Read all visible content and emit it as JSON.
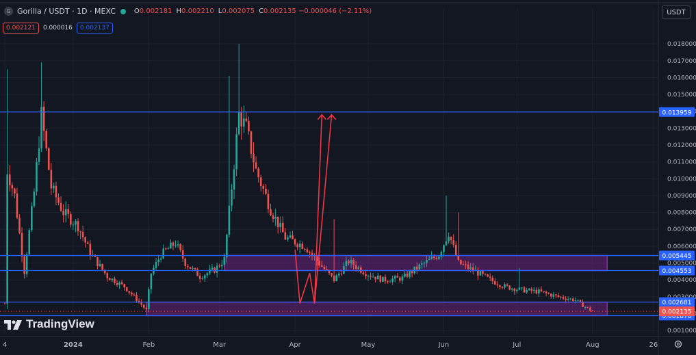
{
  "header": {
    "symbol_icon": "G",
    "title": "Gorilla / USDT · 1D · MEXC",
    "status_dot_color": "#26a69a",
    "ohlc": [
      {
        "label": "O",
        "value": "0.002181"
      },
      {
        "label": "H",
        "value": "0.002210"
      },
      {
        "label": "L",
        "value": "0.002075"
      },
      {
        "label": "C",
        "value": "0.002135 −0.000046 (−2.11%)"
      }
    ],
    "sell_price": "0.002121",
    "spread": "0.000016",
    "buy_price": "0.002137",
    "currency": "USDT"
  },
  "branding": {
    "logo_text": "TradingView",
    "icon": "tradingview-logo-icon"
  },
  "toolbar": {
    "settings_icon": "gear-icon"
  },
  "colors": {
    "background": "#131722",
    "up": "#26a69a",
    "down": "#ef5350",
    "level_line": "#2962ff",
    "zone": "#9c27b0",
    "annotation": "#f23645",
    "grid": "#1e222d",
    "axis_text": "#b2b5be"
  },
  "chart_data": {
    "type": "candlestick",
    "title": "Gorilla / USDT · 1D · MEXC",
    "ylim": [
      0.0008,
      0.0189
    ],
    "xlim": [
      "2023-12-02",
      "2024-08-28"
    ],
    "y_ticks": [
      "0.001000",
      "0.002000",
      "0.003000",
      "0.004000",
      "0.005000",
      "0.006000",
      "0.007000",
      "0.008000",
      "0.009000",
      "0.010000",
      "0.011000",
      "0.012000",
      "0.013000",
      "0.014000",
      "0.015000",
      "0.016000",
      "0.017000",
      "0.018000"
    ],
    "x_ticks": [
      {
        "date": "2023-12-04",
        "label": "4"
      },
      {
        "date": "2024-01-01",
        "label": "2024"
      },
      {
        "date": "2024-02-01",
        "label": "Feb"
      },
      {
        "date": "2024-03-01",
        "label": "Mar"
      },
      {
        "date": "2024-04-01",
        "label": "Apr"
      },
      {
        "date": "2024-05-01",
        "label": "May"
      },
      {
        "date": "2024-06-01",
        "label": "Jun"
      },
      {
        "date": "2024-07-01",
        "label": "Jul"
      },
      {
        "date": "2024-08-01",
        "label": "Aug"
      },
      {
        "date": "2024-08-26",
        "label": "26"
      }
    ],
    "series_anchors": [
      [
        "2023-12-04",
        0.0026
      ],
      [
        "2023-12-05",
        0.0105
      ],
      [
        "2023-12-08",
        0.009
      ],
      [
        "2023-12-12",
        0.0045
      ],
      [
        "2023-12-16",
        0.0092
      ],
      [
        "2023-12-19",
        0.0138
      ],
      [
        "2023-12-23",
        0.0095
      ],
      [
        "2023-12-28",
        0.008
      ],
      [
        "2024-01-03",
        0.0072
      ],
      [
        "2024-01-08",
        0.0056
      ],
      [
        "2024-01-15",
        0.0042
      ],
      [
        "2024-01-22",
        0.0036
      ],
      [
        "2024-01-28",
        0.0027
      ],
      [
        "2024-01-31",
        0.0022
      ],
      [
        "2024-02-02",
        0.0044
      ],
      [
        "2024-02-06",
        0.0055
      ],
      [
        "2024-02-12",
        0.0062
      ],
      [
        "2024-02-16",
        0.005
      ],
      [
        "2024-02-22",
        0.0042
      ],
      [
        "2024-02-28",
        0.0046
      ],
      [
        "2024-03-03",
        0.0052
      ],
      [
        "2024-03-06",
        0.0095
      ],
      [
        "2024-03-09",
        0.0138
      ],
      [
        "2024-03-12",
        0.013
      ],
      [
        "2024-03-16",
        0.0105
      ],
      [
        "2024-03-22",
        0.0082
      ],
      [
        "2024-03-28",
        0.0065
      ],
      [
        "2024-04-05",
        0.006
      ],
      [
        "2024-04-12",
        0.0048
      ],
      [
        "2024-04-17",
        0.004
      ],
      [
        "2024-04-23",
        0.0051
      ],
      [
        "2024-04-30",
        0.0044
      ],
      [
        "2024-05-07",
        0.004
      ],
      [
        "2024-05-15",
        0.0041
      ],
      [
        "2024-05-22",
        0.0048
      ],
      [
        "2024-05-30",
        0.0055
      ],
      [
        "2024-06-03",
        0.0068
      ],
      [
        "2024-06-07",
        0.005
      ],
      [
        "2024-06-14",
        0.0045
      ],
      [
        "2024-06-20",
        0.004
      ],
      [
        "2024-06-26",
        0.0036
      ],
      [
        "2024-07-03",
        0.0034
      ],
      [
        "2024-07-10",
        0.0033
      ],
      [
        "2024-07-18",
        0.003
      ],
      [
        "2024-07-25",
        0.0028
      ],
      [
        "2024-07-30",
        0.0023
      ],
      [
        "2024-08-01",
        0.002135
      ]
    ],
    "spikes": [
      [
        "2023-12-05",
        0.0165
      ],
      [
        "2023-12-19",
        0.0169
      ],
      [
        "2024-03-09",
        0.018
      ],
      [
        "2024-03-05",
        0.0161
      ],
      [
        "2024-06-02",
        0.009
      ],
      [
        "2024-06-07",
        0.008
      ],
      [
        "2024-07-02",
        0.0047
      ],
      [
        "2024-04-17",
        0.0076
      ]
    ],
    "levels": [
      {
        "value": 0.013959,
        "label": "0.013959",
        "end": "2024-08-28"
      },
      {
        "value": 0.005445,
        "label": "0.005445",
        "end": "2024-08-28"
      },
      {
        "value": 0.004553,
        "label": "0.004553",
        "end": "2024-08-28"
      },
      {
        "value": 0.002681,
        "label": "0.002681",
        "end": "2024-08-28"
      },
      {
        "value": 0.001878,
        "label": "0.001878",
        "end": "2024-08-28"
      }
    ],
    "zones": [
      {
        "from": "2024-03-03",
        "to": "2024-08-07",
        "low": 0.004553,
        "high": 0.005445
      },
      {
        "from": "2024-01-31",
        "to": "2024-08-07",
        "low": 0.001878,
        "high": 0.002681
      }
    ],
    "last_price": {
      "value": 0.002135,
      "label": "0.002135"
    },
    "annotation": {
      "type": "arrow-path",
      "points": [
        [
          "2024-04-01",
          0.0058
        ],
        [
          "2024-04-03",
          0.0026
        ],
        [
          "2024-04-07",
          0.0044
        ],
        [
          "2024-04-09",
          0.0026
        ],
        [
          "2024-04-12",
          0.0138
        ]
      ],
      "second_arrow": [
        [
          "2024-04-09",
          0.0026
        ],
        [
          "2024-04-16",
          0.0138
        ]
      ]
    }
  }
}
